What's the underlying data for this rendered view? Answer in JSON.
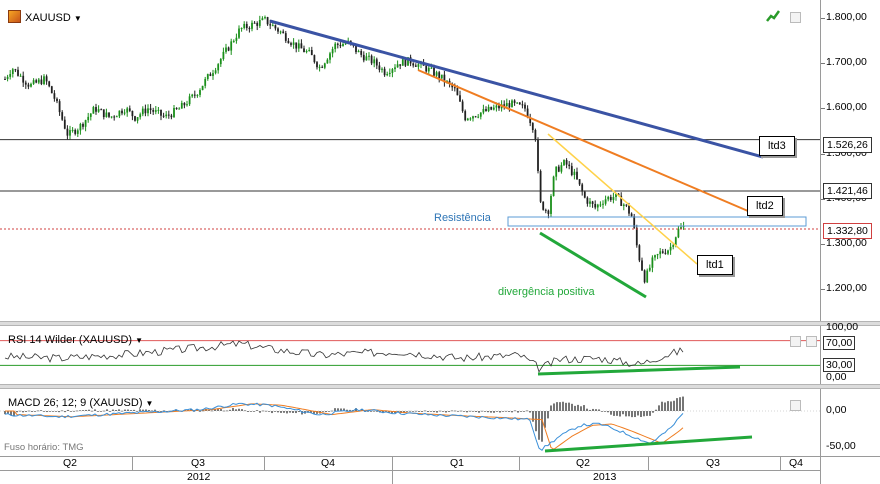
{
  "main": {
    "symbol": "XAUUSD",
    "y_ticks": [
      "1.800,00",
      "1.700,00",
      "1.600,00",
      "1.500,00",
      "1.400,00",
      "1.300,00",
      "1.200,00"
    ],
    "levels": [
      {
        "label": "1.526,26",
        "value": 1526.26
      },
      {
        "label": "1.421,46",
        "value": 1421.46
      },
      {
        "label": "1.332,80",
        "value": 1332.8
      }
    ],
    "annotations": {
      "ltd1": "ltd1",
      "ltd2": "ltd2",
      "ltd3": "ltd3",
      "resistance": "Resistência",
      "divergence": "divergência positiva"
    },
    "colors": {
      "up": "#1a8f1a",
      "down": "#202020",
      "ltd1": "#ffd24a",
      "ltd2": "#ef7d22",
      "ltd3": "#3a53a4",
      "divergence": "#22a83a",
      "level_line": "#333333",
      "resistance": "#5b9bd5",
      "last_price": "#d04040"
    }
  },
  "rsi": {
    "title": "RSI 14 Wilder (XAUUSD)",
    "y_ticks": [
      "100,00",
      "70,00",
      "30,00",
      "0,00"
    ],
    "overbought": 70,
    "oversold": 30
  },
  "macd": {
    "title": "MACD 26; 12; 9 (XAUUSD)",
    "y_ticks": [
      "0,00",
      "-50,00"
    ],
    "footer": "Fuso horário: TMG"
  },
  "x_axis": {
    "quarters": [
      "Q2",
      "Q3",
      "Q4",
      "Q1",
      "Q2",
      "Q3",
      "Q4"
    ],
    "years": [
      "2012",
      "2013"
    ]
  },
  "chart_data": [
    {
      "type": "candlestick",
      "title": "XAUUSD",
      "x": [
        "2012-Q2",
        "2012-Q3",
        "2012-Q4",
        "2013-Q1",
        "2013-Q2",
        "2013-Q3",
        "2013-Q4"
      ],
      "ylim": [
        1150,
        1830
      ],
      "approx_close_path": [
        {
          "x": "2012-04",
          "y": 1665
        },
        {
          "x": "2012-05",
          "y": 1560
        },
        {
          "x": "2012-06",
          "y": 1600
        },
        {
          "x": "2012-07",
          "y": 1585
        },
        {
          "x": "2012-08",
          "y": 1630
        },
        {
          "x": "2012-09",
          "y": 1760
        },
        {
          "x": "2012-10",
          "y": 1790
        },
        {
          "x": "2012-10b",
          "y": 1730
        },
        {
          "x": "2012-11",
          "y": 1715
        },
        {
          "x": "2012-12",
          "y": 1670
        },
        {
          "x": "2013-01",
          "y": 1690
        },
        {
          "x": "2013-02",
          "y": 1590
        },
        {
          "x": "2013-03",
          "y": 1600
        },
        {
          "x": "2013-04a",
          "y": 1560
        },
        {
          "x": "2013-04b",
          "y": 1360
        },
        {
          "x": "2013-05",
          "y": 1470
        },
        {
          "x": "2013-05b",
          "y": 1390
        },
        {
          "x": "2013-06",
          "y": 1400
        },
        {
          "x": "2013-06b",
          "y": 1220
        },
        {
          "x": "2013-07",
          "y": 1290
        },
        {
          "x": "2013-08",
          "y": 1340
        }
      ],
      "horizontal_levels": [
        1526.26,
        1421.46,
        1332.8
      ],
      "trendlines": [
        {
          "name": "ltd1",
          "from": {
            "x": "2013-04",
            "y": 1570
          },
          "to": {
            "x": "2013-08",
            "y": 1265
          }
        },
        {
          "name": "ltd2",
          "from": {
            "x": "2013-01",
            "y": 1700
          },
          "to": {
            "x": "2013-10",
            "y": 1375
          }
        },
        {
          "name": "ltd3",
          "from": {
            "x": "2012-10",
            "y": 1795
          },
          "to": {
            "x": "2013-10",
            "y": 1490
          }
        }
      ],
      "annotations": [
        "ltd1",
        "ltd2",
        "ltd3",
        "Resistência",
        "divergência positiva"
      ]
    },
    {
      "type": "line",
      "title": "RSI 14 Wilder (XAUUSD)",
      "ylim": [
        0,
        100
      ],
      "levels": [
        70,
        30
      ],
      "approx_values": [
        {
          "x": "2012-04",
          "y": 45
        },
        {
          "x": "2012-06",
          "y": 40
        },
        {
          "x": "2012-08",
          "y": 55
        },
        {
          "x": "2012-10",
          "y": 68
        },
        {
          "x": "2012-11",
          "y": 48
        },
        {
          "x": "2013-01",
          "y": 52
        },
        {
          "x": "2013-02",
          "y": 38
        },
        {
          "x": "2013-04",
          "y": 22
        },
        {
          "x": "2013-05",
          "y": 45
        },
        {
          "x": "2013-06",
          "y": 27
        },
        {
          "x": "2013-08",
          "y": 58
        }
      ]
    },
    {
      "type": "line",
      "title": "MACD 26; 12; 9 (XAUUSD)",
      "ylim": [
        -65,
        15
      ],
      "approx_values": [
        {
          "x": "2012-04",
          "y": -5
        },
        {
          "x": "2012-06",
          "y": -8
        },
        {
          "x": "2012-08",
          "y": 2
        },
        {
          "x": "2012-10",
          "y": 8
        },
        {
          "x": "2012-12",
          "y": -6
        },
        {
          "x": "2013-02",
          "y": -8
        },
        {
          "x": "2013-04",
          "y": -55
        },
        {
          "x": "2013-05",
          "y": -25
        },
        {
          "x": "2013-06",
          "y": -45
        },
        {
          "x": "2013-08",
          "y": 5
        }
      ]
    }
  ]
}
